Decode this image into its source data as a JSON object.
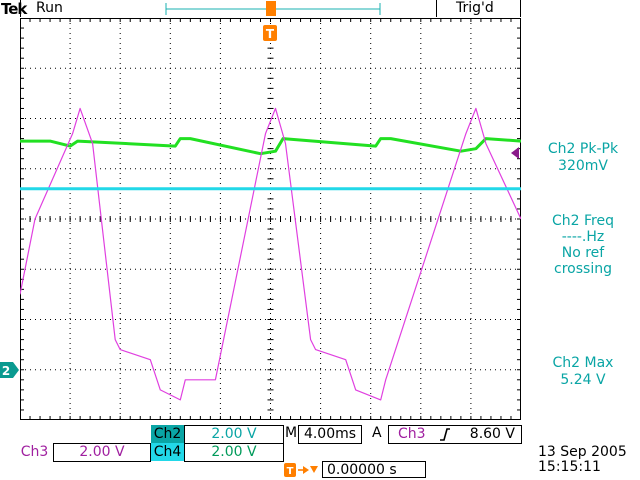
{
  "header": {
    "brand": "Tek",
    "status": "Run",
    "trigger_status": "Trig'd"
  },
  "colors": {
    "ch2": "#22e022",
    "ch3": "#e040e0",
    "ch4": "#22d8e8",
    "grid": "#000000",
    "label_teal": "#0aa5a5",
    "marker_orange": "#ff7f00",
    "marker_ch2": "#0a9a90",
    "arrow_purple": "#8a1a8a"
  },
  "screen": {
    "trigger_marker": "T",
    "ch2_ground_marker": "2"
  },
  "measurements": {
    "m1_label": "Ch2 Pk-Pk",
    "m1_value": "320mV",
    "m2_label": "Ch2 Freq",
    "m2_value": "----.Hz",
    "m2_note1": "No ref",
    "m2_note2": "crossing",
    "m3_label": "Ch2 Max",
    "m3_value": "5.24 V"
  },
  "channels": {
    "ch2_label": "Ch2",
    "ch2_scale": "2.00 V",
    "ch3_label": "Ch3",
    "ch3_scale": "2.00 V",
    "ch4_label": "Ch4",
    "ch4_scale": "2.00 V"
  },
  "timebase": {
    "prefix": "M",
    "value": "4.00ms",
    "trigger_mode": "A",
    "trigger_source": "Ch3",
    "trigger_slope_icon": "rising-edge-icon",
    "trigger_level": "8.60 V",
    "position_icon": "trigger-offset-icon",
    "position_value": "0.00000 s"
  },
  "datetime": {
    "date": "13 Sep  2005",
    "time": "15:15:11"
  },
  "chart_data": {
    "type": "line",
    "grid": true,
    "divisions": {
      "x": 10,
      "y": 8
    },
    "series": [
      {
        "name": "Ch2",
        "color": "#22e022",
        "x": [
          0,
          0.6,
          1.0,
          1.15,
          3.1,
          3.2,
          3.4,
          4.8,
          5.1,
          5.25,
          7.1,
          7.2,
          7.4,
          8.8,
          9.1,
          9.3,
          10
        ],
        "y": [
          1.55,
          1.55,
          1.45,
          1.55,
          1.45,
          1.6,
          1.6,
          1.3,
          1.35,
          1.6,
          1.45,
          1.6,
          1.6,
          1.35,
          1.4,
          1.6,
          1.55
        ]
      },
      {
        "name": "Ch3",
        "color": "#e040e0",
        "x": [
          0,
          0.3,
          1.05,
          1.2,
          1.45,
          1.9,
          2.0,
          2.6,
          2.8,
          3.2,
          3.3,
          3.9,
          4.9,
          5.1,
          5.3,
          5.8,
          5.9,
          6.5,
          6.7,
          7.2,
          7.3,
          8.9,
          9.1,
          9.3,
          10
        ],
        "y": [
          -1.5,
          0,
          1.7,
          2.2,
          1.5,
          -2.4,
          -2.6,
          -2.8,
          -3.4,
          -3.6,
          -3.2,
          -3.2,
          1.7,
          2.2,
          1.5,
          -2.4,
          -2.6,
          -2.8,
          -3.4,
          -3.6,
          -3.2,
          1.7,
          2.2,
          1.5,
          0
        ]
      },
      {
        "name": "Ch4",
        "color": "#22d8e8",
        "x": [
          0,
          10
        ],
        "y": [
          0.6,
          0.6
        ]
      }
    ]
  }
}
